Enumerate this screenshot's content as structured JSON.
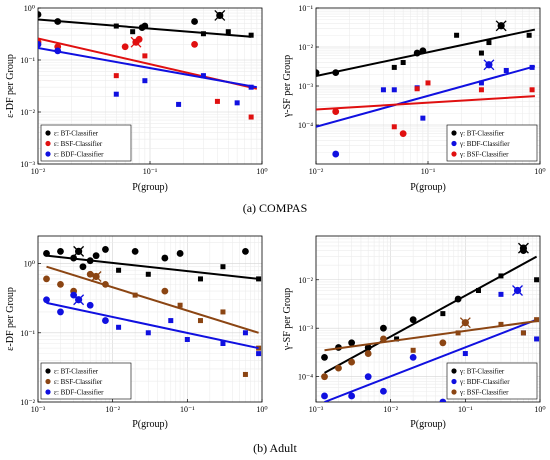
{
  "captions": [
    "(a) COMPAS",
    "(b) Adult"
  ],
  "chart_data": [
    {
      "type": "scatter",
      "panel": "compas-epsilon",
      "xlabel": "P(group)",
      "ylabel": "ε-DF per Group",
      "xscale": "log",
      "yscale": "log",
      "xlim": [
        0.01,
        1
      ],
      "ylim": [
        0.001,
        1
      ],
      "xticks": [
        0.01,
        0.1,
        1
      ],
      "yticks": [
        0.001,
        0.01,
        0.1,
        1
      ],
      "xticklabels": [
        "10⁻²",
        "10⁻¹",
        "10⁰"
      ],
      "yticklabels": [
        "10⁻³",
        "10⁻²",
        "10⁻¹",
        "10⁰"
      ],
      "grid": true,
      "legend_position": "bottom-left",
      "series": [
        {
          "name": "ε: BT-Classifier",
          "color": "#000000",
          "x": [
            0.01,
            0.015,
            0.05,
            0.07,
            0.085,
            0.09,
            0.25,
            0.3,
            0.5,
            0.8
          ],
          "y": [
            0.75,
            0.55,
            0.45,
            0.35,
            0.42,
            0.45,
            0.55,
            0.32,
            0.35,
            0.3
          ],
          "marker_sizes": [
            "large",
            "large",
            "small",
            "small",
            "large",
            "large",
            "large",
            "small",
            "small",
            "small"
          ],
          "line": {
            "x": [
              0.01,
              0.8
            ],
            "y": [
              0.6,
              0.28
            ]
          },
          "highlight": {
            "x": 0.42,
            "y": 0.72
          }
        },
        {
          "name": "ε: BSF-Classifier",
          "color": "#e01010",
          "x": [
            0.01,
            0.015,
            0.05,
            0.06,
            0.08,
            0.09,
            0.25,
            0.4,
            0.8
          ],
          "y": [
            0.22,
            0.18,
            0.05,
            0.18,
            0.25,
            0.12,
            0.2,
            0.016,
            0.008
          ],
          "marker_sizes": [
            "large",
            "large",
            "small",
            "large",
            "large",
            "small",
            "large",
            "small",
            "small"
          ],
          "line": {
            "x": [
              0.01,
              0.9
            ],
            "y": [
              0.26,
              0.028
            ]
          },
          "highlight": {
            "x": 0.075,
            "y": 0.22
          }
        },
        {
          "name": "ε: BDF-Classifier",
          "color": "#1010e0",
          "x": [
            0.01,
            0.015,
            0.05,
            0.09,
            0.18,
            0.3,
            0.6,
            0.8
          ],
          "y": [
            0.2,
            0.15,
            0.022,
            0.04,
            0.014,
            0.05,
            0.015,
            0.03
          ],
          "marker_sizes": [
            "large",
            "large",
            "small",
            "small",
            "small",
            "small",
            "small",
            "small"
          ],
          "line": {
            "x": [
              0.01,
              0.9
            ],
            "y": [
              0.17,
              0.03
            ]
          }
        }
      ]
    },
    {
      "type": "scatter",
      "panel": "compas-gamma",
      "xlabel": "P(group)",
      "ylabel": "γ-SF per Group",
      "xscale": "log",
      "yscale": "log",
      "xlim": [
        0.01,
        1
      ],
      "ylim": [
        1e-05,
        0.1
      ],
      "xticks": [
        0.01,
        0.1,
        1
      ],
      "yticks": [
        0.0001,
        0.001,
        0.01,
        0.1
      ],
      "xticklabels": [
        "10⁻²",
        "10⁻¹",
        "10⁰"
      ],
      "yticklabels": [
        "10⁻⁴",
        "10⁻³",
        "10⁻²",
        "10⁻¹"
      ],
      "grid": true,
      "legend_position": "bottom-right",
      "series": [
        {
          "name": "γ: BT-Classifier",
          "color": "#000000",
          "x": [
            0.01,
            0.015,
            0.05,
            0.06,
            0.08,
            0.09,
            0.18,
            0.3,
            0.35,
            0.8
          ],
          "y": [
            0.0022,
            0.0022,
            0.003,
            0.004,
            0.007,
            0.008,
            0.02,
            0.007,
            0.013,
            0.02
          ],
          "marker_sizes": [
            "large",
            "large",
            "small",
            "small",
            "large",
            "large",
            "small",
            "small",
            "small",
            "small"
          ],
          "line": {
            "x": [
              0.01,
              0.9
            ],
            "y": [
              0.0018,
              0.028
            ]
          },
          "highlight": {
            "x": 0.45,
            "y": 0.035
          }
        },
        {
          "name": "γ: BDF-Classifier",
          "color": "#1010e0",
          "x": [
            0.015,
            0.04,
            0.05,
            0.08,
            0.09,
            0.3,
            0.5,
            0.85
          ],
          "y": [
            1.8e-05,
            0.0008,
            0.0008,
            0.0009,
            0.00015,
            0.0012,
            0.0025,
            0.003
          ],
          "marker_sizes": [
            "large",
            "small",
            "small",
            "small",
            "small",
            "small",
            "small",
            "small"
          ],
          "line": {
            "x": [
              0.01,
              0.9
            ],
            "y": [
              9e-05,
              0.0032
            ]
          },
          "highlight": {
            "x": 0.35,
            "y": 0.0035
          }
        },
        {
          "name": "γ: BSF-Classifier",
          "color": "#e01010",
          "x": [
            0.015,
            0.05,
            0.06,
            0.08,
            0.1,
            0.3,
            0.85
          ],
          "y": [
            0.00022,
            9e-05,
            6e-05,
            0.00085,
            0.0012,
            0.0008,
            0.0008
          ],
          "marker_sizes": [
            "large",
            "small",
            "large",
            "small",
            "small",
            "small",
            "small"
          ],
          "line": {
            "x": [
              0.01,
              0.9
            ],
            "y": [
              0.00025,
              0.00055
            ]
          }
        }
      ]
    },
    {
      "type": "scatter",
      "panel": "adult-epsilon",
      "xlabel": "P(group)",
      "ylabel": "ε-DF per Group",
      "xscale": "log",
      "yscale": "log",
      "xlim": [
        0.001,
        1
      ],
      "ylim": [
        0.01,
        2.5
      ],
      "xticks": [
        0.001,
        0.01,
        0.1,
        1
      ],
      "yticks": [
        0.01,
        0.1,
        1
      ],
      "xticklabels": [
        "10⁻³",
        "10⁻²",
        "10⁻¹",
        "10⁰"
      ],
      "yticklabels": [
        "10⁻²",
        "10⁻¹",
        "10⁰"
      ],
      "grid": true,
      "legend_position": "bottom-left",
      "series": [
        {
          "name": "ε: BT-Classifier",
          "color": "#000000",
          "x": [
            0.0013,
            0.002,
            0.003,
            0.004,
            0.005,
            0.006,
            0.008,
            0.012,
            0.02,
            0.03,
            0.05,
            0.08,
            0.15,
            0.3,
            0.6,
            0.9
          ],
          "y": [
            1.4,
            1.5,
            1.2,
            0.9,
            1.1,
            1.3,
            1.6,
            0.8,
            1.5,
            0.7,
            1.2,
            1.4,
            0.6,
            0.9,
            1.5,
            0.6
          ],
          "marker_sizes": [
            "large",
            "large",
            "large",
            "large",
            "large",
            "large",
            "large",
            "small",
            "large",
            "small",
            "large",
            "large",
            "small",
            "small",
            "large",
            "small"
          ],
          "line": {
            "x": [
              0.0013,
              0.9
            ],
            "y": [
              1.3,
              0.6
            ]
          },
          "highlight": {
            "x": 0.0035,
            "y": 1.5
          }
        },
        {
          "name": "ε: BSF-Classifier",
          "color": "#8b4513",
          "x": [
            0.0013,
            0.002,
            0.003,
            0.005,
            0.008,
            0.02,
            0.05,
            0.08,
            0.15,
            0.3,
            0.6,
            0.9
          ],
          "y": [
            0.6,
            0.5,
            0.4,
            0.7,
            0.5,
            0.35,
            0.4,
            0.25,
            0.15,
            0.2,
            0.025,
            0.06
          ],
          "marker_sizes": [
            "large",
            "large",
            "large",
            "large",
            "large",
            "small",
            "large",
            "small",
            "small",
            "small",
            "small",
            "small"
          ],
          "line": {
            "x": [
              0.0013,
              0.9
            ],
            "y": [
              0.9,
              0.1
            ]
          },
          "highlight": {
            "x": 0.006,
            "y": 0.65
          }
        },
        {
          "name": "ε: BDF-Classifier",
          "color": "#1010e0",
          "x": [
            0.0013,
            0.002,
            0.003,
            0.005,
            0.008,
            0.012,
            0.03,
            0.06,
            0.1,
            0.3,
            0.6,
            0.9
          ],
          "y": [
            0.3,
            0.2,
            0.35,
            0.25,
            0.15,
            0.12,
            0.1,
            0.15,
            0.08,
            0.07,
            0.1,
            0.05
          ],
          "marker_sizes": [
            "large",
            "large",
            "large",
            "large",
            "large",
            "small",
            "small",
            "small",
            "small",
            "small",
            "small",
            "small"
          ],
          "line": {
            "x": [
              0.0013,
              0.9
            ],
            "y": [
              0.27,
              0.06
            ]
          },
          "highlight": {
            "x": 0.0035,
            "y": 0.3
          }
        }
      ]
    },
    {
      "type": "scatter",
      "panel": "adult-gamma",
      "xlabel": "P(group)",
      "ylabel": "γ-SF per Group",
      "xscale": "log",
      "yscale": "log",
      "xlim": [
        0.001,
        1
      ],
      "ylim": [
        3e-05,
        0.08
      ],
      "xticks": [
        0.001,
        0.01,
        0.1,
        1
      ],
      "yticks": [
        0.0001,
        0.001,
        0.01
      ],
      "xticklabels": [
        "10⁻³",
        "10⁻²",
        "10⁻¹",
        "10⁰"
      ],
      "yticklabels": [
        "10⁻⁴",
        "10⁻³",
        "10⁻²"
      ],
      "grid": true,
      "legend_position": "bottom-right",
      "series": [
        {
          "name": "γ: BT-Classifier",
          "color": "#000000",
          "x": [
            0.0013,
            0.002,
            0.003,
            0.005,
            0.008,
            0.012,
            0.02,
            0.05,
            0.08,
            0.15,
            0.3,
            0.6,
            0.9
          ],
          "y": [
            0.00025,
            0.0004,
            0.0005,
            0.0004,
            0.001,
            0.0006,
            0.0015,
            0.002,
            0.004,
            0.006,
            0.012,
            0.04,
            0.01
          ],
          "marker_sizes": [
            "large",
            "large",
            "large",
            "large",
            "large",
            "small",
            "large",
            "small",
            "large",
            "small",
            "small",
            "large",
            "small"
          ],
          "line": {
            "x": [
              0.0013,
              0.9
            ],
            "y": [
              0.00012,
              0.03
            ]
          },
          "highlight": {
            "x": 0.6,
            "y": 0.045
          }
        },
        {
          "name": "γ: BDF-Classifier",
          "color": "#1010e0",
          "x": [
            0.0013,
            0.003,
            0.005,
            0.008,
            0.02,
            0.05,
            0.1,
            0.3,
            0.6,
            0.9
          ],
          "y": [
            4e-05,
            4e-05,
            0.0001,
            5e-05,
            0.00025,
            3e-05,
            0.0003,
            0.005,
            0.0008,
            0.0006
          ],
          "marker_sizes": [
            "large",
            "large",
            "large",
            "large",
            "large",
            "large",
            "small",
            "small",
            "small",
            "small"
          ],
          "line": {
            "x": [
              0.0013,
              0.9
            ],
            "y": [
              3e-05,
              0.0015
            ]
          },
          "highlight": {
            "x": 0.5,
            "y": 0.006
          }
        },
        {
          "name": "γ: BSF-Classifier",
          "color": "#8b4513",
          "x": [
            0.0013,
            0.002,
            0.003,
            0.005,
            0.008,
            0.02,
            0.05,
            0.08,
            0.3,
            0.6,
            0.9
          ],
          "y": [
            0.0001,
            0.00015,
            0.0002,
            0.0003,
            0.0006,
            0.00035,
            0.0005,
            0.0008,
            0.0012,
            0.0008,
            0.0015
          ],
          "marker_sizes": [
            "large",
            "large",
            "large",
            "large",
            "large",
            "small",
            "large",
            "small",
            "small",
            "small",
            "small"
          ],
          "line": {
            "x": [
              0.0013,
              0.9
            ],
            "y": [
              0.00035,
              0.0014
            ]
          },
          "highlight": {
            "x": 0.1,
            "y": 0.0013
          }
        }
      ]
    }
  ]
}
